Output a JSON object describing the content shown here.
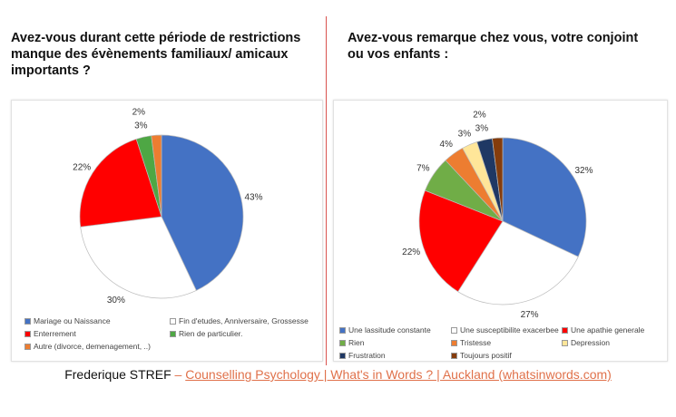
{
  "footer": {
    "author": "Frederique STREF",
    "sep": " – ",
    "link": "Counselling Psychology | What's in Words ? | Auckland (whatsinwords.com)"
  },
  "chart_data": [
    {
      "type": "pie",
      "title": "Avez-vous durant cette période de restrictions manque des évènements familiaux/ amicaux importants ?",
      "labels": [
        "Mariage ou Naissance",
        "Fin d'etudes, Anniversaire, Grossesse",
        "Enterrement",
        "Rien de particulier.",
        "Autre (divorce, demenagement, ..)"
      ],
      "values": [
        43,
        30,
        22,
        3,
        2
      ],
      "data_labels": [
        "43%",
        "30%",
        "22%",
        "3%",
        "2%"
      ],
      "colors": [
        "#4472c4",
        "#ffffff",
        "#ff0000",
        "#4ea744",
        "#ed7d31"
      ],
      "legend": "bottom"
    },
    {
      "type": "pie",
      "title": "Avez-vous remarque chez vous, votre conjoint ou vos enfants :",
      "labels": [
        "Une lassitude constante",
        "Une susceptibilite exacerbee",
        "Une apathie generale",
        "Rien",
        "Tristesse",
        "Depression",
        "Frustration",
        "Toujours positif"
      ],
      "values": [
        32,
        27,
        22,
        7,
        4,
        3,
        3,
        2
      ],
      "data_labels": [
        "32%",
        "27%",
        "22%",
        "7%",
        "4%",
        "3%",
        "3%",
        "2%"
      ],
      "colors": [
        "#4472c4",
        "#ffffff",
        "#ff0000",
        "#70ad47",
        "#ed7d31",
        "#ffe699",
        "#1f3864",
        "#843c0c"
      ],
      "legend": "bottom"
    }
  ]
}
